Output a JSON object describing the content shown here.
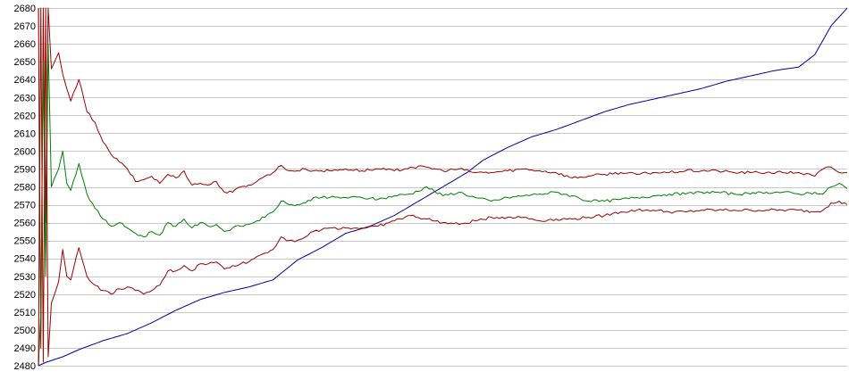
{
  "chart_data": {
    "type": "line",
    "title": "",
    "xlabel": "",
    "ylabel": "",
    "ylim": [
      2480,
      2680
    ],
    "yticks": [
      2480,
      2490,
      2500,
      2510,
      2520,
      2530,
      2540,
      2550,
      2560,
      2570,
      2580,
      2590,
      2600,
      2610,
      2620,
      2630,
      2640,
      2650,
      2660,
      2670,
      2680
    ],
    "xlim": [
      0,
      100
    ],
    "grid": "horizontal",
    "legend": "none",
    "series": [
      {
        "color": "#0000a0",
        "x": [
          0,
          1,
          3,
          5,
          8,
          11,
          14,
          17,
          20,
          23,
          26,
          29,
          32,
          35,
          38,
          41,
          44,
          47,
          50,
          53,
          55,
          58,
          61,
          64,
          67,
          70,
          73,
          76,
          79,
          82,
          85,
          88,
          91,
          94,
          96,
          97,
          98,
          100
        ],
        "y": [
          2480,
          2482,
          2485,
          2489,
          2494,
          2498,
          2504,
          2511,
          2517,
          2521,
          2524,
          2528,
          2539,
          2546,
          2554,
          2558,
          2564,
          2572,
          2580,
          2588,
          2595,
          2602,
          2608,
          2612,
          2617,
          2622,
          2626,
          2629,
          2632,
          2635,
          2639,
          2642,
          2645,
          2647,
          2654,
          2662,
          2670,
          2680
        ]
      },
      {
        "color": "#a00000",
        "x": [
          0,
          0.3,
          0.6,
          0.9,
          1.2,
          1.6,
          2,
          2.5,
          3,
          3.5,
          4,
          5,
          6,
          7,
          8,
          9,
          10,
          11,
          12,
          13,
          14,
          15,
          16,
          17,
          18,
          19,
          20,
          21,
          22,
          23,
          24,
          25,
          26,
          27,
          28,
          29,
          30,
          31,
          32,
          33,
          34,
          35,
          36,
          38,
          40,
          42,
          44,
          46,
          48,
          50,
          52,
          54,
          56,
          58,
          60,
          62,
          64,
          66,
          68,
          70,
          72,
          74,
          76,
          78,
          80,
          82,
          84,
          86,
          88,
          90,
          92,
          94,
          96,
          97,
          98,
          99,
          100
        ],
        "y": [
          2680,
          2490,
          2680,
          2560,
          2680,
          2646,
          2650,
          2655,
          2643,
          2635,
          2628,
          2640,
          2622,
          2616,
          2605,
          2598,
          2594,
          2590,
          2583,
          2584,
          2586,
          2582,
          2587,
          2585,
          2589,
          2581,
          2582,
          2581,
          2583,
          2577,
          2577,
          2580,
          2581,
          2583,
          2586,
          2588,
          2592,
          2589,
          2589,
          2590,
          2589,
          2589,
          2589,
          2590,
          2589,
          2590,
          2589,
          2591,
          2591,
          2589,
          2590,
          2588,
          2588,
          2589,
          2590,
          2589,
          2588,
          2585,
          2586,
          2587,
          2588,
          2587,
          2588,
          2588,
          2589,
          2589,
          2589,
          2588,
          2588,
          2588,
          2588,
          2588,
          2586,
          2590,
          2591,
          2588,
          2588
        ]
      },
      {
        "color": "#008000",
        "x": [
          0,
          0.3,
          0.6,
          0.9,
          1.2,
          1.6,
          2,
          2.5,
          3,
          3.5,
          4,
          5,
          6,
          7,
          8,
          9,
          10,
          11,
          12,
          13,
          14,
          15,
          16,
          17,
          18,
          19,
          20,
          21,
          22,
          23,
          24,
          25,
          26,
          27,
          28,
          29,
          30,
          31,
          32,
          33,
          34,
          35,
          36,
          38,
          40,
          42,
          44,
          46,
          48,
          50,
          52,
          54,
          56,
          58,
          60,
          62,
          64,
          66,
          68,
          70,
          72,
          74,
          76,
          78,
          80,
          82,
          84,
          86,
          88,
          90,
          92,
          94,
          96,
          97,
          98,
          99,
          100
        ],
        "y": [
          2480,
          2510,
          2650,
          2530,
          2660,
          2580,
          2585,
          2590,
          2600,
          2582,
          2578,
          2593,
          2576,
          2568,
          2562,
          2558,
          2560,
          2557,
          2554,
          2552,
          2555,
          2553,
          2560,
          2558,
          2562,
          2557,
          2560,
          2558,
          2559,
          2555,
          2557,
          2558,
          2559,
          2561,
          2563,
          2566,
          2572,
          2570,
          2570,
          2571,
          2574,
          2574,
          2574,
          2574,
          2574,
          2573,
          2575,
          2576,
          2580,
          2575,
          2577,
          2574,
          2572,
          2574,
          2575,
          2576,
          2577,
          2575,
          2572,
          2572,
          2573,
          2574,
          2575,
          2576,
          2576,
          2577,
          2577,
          2576,
          2576,
          2577,
          2577,
          2576,
          2577,
          2576,
          2580,
          2582,
          2579
        ]
      },
      {
        "color": "#a00000",
        "x": [
          0,
          0.3,
          0.6,
          0.9,
          1.2,
          1.6,
          2,
          2.5,
          3,
          3.5,
          4,
          5,
          6,
          7,
          8,
          9,
          10,
          11,
          12,
          13,
          14,
          15,
          16,
          17,
          18,
          19,
          20,
          21,
          22,
          23,
          24,
          25,
          26,
          27,
          28,
          29,
          30,
          31,
          32,
          33,
          34,
          35,
          36,
          38,
          40,
          42,
          44,
          46,
          48,
          50,
          52,
          54,
          56,
          58,
          60,
          62,
          64,
          66,
          68,
          70,
          72,
          74,
          76,
          78,
          80,
          82,
          84,
          86,
          88,
          90,
          92,
          94,
          96,
          97,
          98,
          99,
          100
        ],
        "y": [
          2480,
          2680,
          2482,
          2680,
          2485,
          2515,
          2520,
          2527,
          2545,
          2530,
          2528,
          2546,
          2530,
          2525,
          2522,
          2520,
          2523,
          2524,
          2522,
          2520,
          2522,
          2525,
          2533,
          2533,
          2536,
          2533,
          2537,
          2537,
          2538,
          2534,
          2536,
          2537,
          2538,
          2541,
          2543,
          2545,
          2552,
          2550,
          2550,
          2552,
          2555,
          2556,
          2557,
          2557,
          2557,
          2558,
          2561,
          2564,
          2562,
          2560,
          2559,
          2561,
          2563,
          2563,
          2563,
          2561,
          2562,
          2562,
          2563,
          2564,
          2566,
          2567,
          2567,
          2566,
          2566,
          2567,
          2567,
          2567,
          2567,
          2567,
          2567,
          2567,
          2566,
          2567,
          2571,
          2572,
          2570
        ]
      }
    ]
  }
}
